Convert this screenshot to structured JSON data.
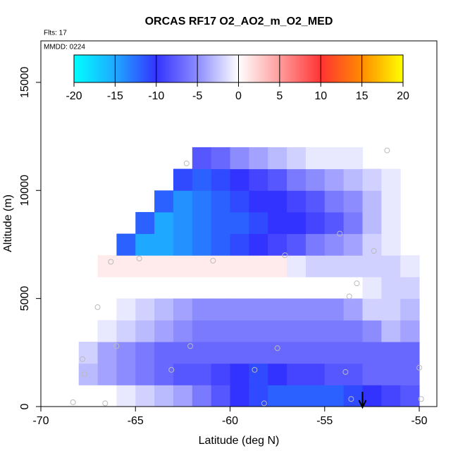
{
  "chart_data": {
    "type": "heatmap",
    "title": "ORCAS RF17 O2_AO2_m_O2_MED",
    "annotations": [
      "Flts: 17",
      "MMDD: 0224"
    ],
    "xlabel": "Latitude (deg N)",
    "ylabel": "Altitude (m)",
    "xlim": [
      -70,
      -49.07
    ],
    "ylim": [
      0,
      16920
    ],
    "xticks": [
      -70,
      -65,
      -60,
      -55,
      -50
    ],
    "yticks": [
      0,
      5000,
      10000,
      15000
    ],
    "colorbar_ticks": [
      -20,
      -15,
      -10,
      -5,
      0,
      5,
      10,
      15,
      20
    ],
    "colorbar_colors": [
      "#00ffff",
      "#1fa8ff",
      "#3333ff",
      "#8c8cff",
      "#ffffff",
      "#ff9c9c",
      "#ff3333",
      "#ff8c00",
      "#ffff00"
    ],
    "x_edges": [
      -68,
      -67,
      -66,
      -65,
      -64,
      -63,
      -62,
      -61,
      -60,
      -59,
      -58,
      -57,
      -56,
      -55,
      -54,
      -53,
      -52,
      -51,
      -50
    ],
    "y_edges": [
      0,
      1000,
      2000,
      3000,
      4000,
      5000,
      6000,
      7000,
      8000,
      9000,
      10000,
      11000,
      12000
    ],
    "z": [
      [
        null,
        null,
        -1,
        -2,
        -3,
        -4,
        -6,
        -8,
        -10,
        -11,
        -12,
        -12,
        -12,
        -12,
        -11,
        -10,
        -9,
        -8
      ],
      [
        -3,
        -4,
        -5,
        -6,
        -7,
        -8,
        -8,
        -9,
        -10,
        -11,
        -10,
        -9,
        -9,
        -8,
        -8,
        -7,
        -7,
        -7
      ],
      [
        -2,
        -4,
        -5,
        -6,
        -7,
        -7,
        -7,
        -7,
        -7,
        -7,
        -7,
        -7,
        -7,
        -7,
        -7,
        -7,
        -7,
        -7
      ],
      [
        null,
        -1,
        -2,
        -3,
        -4,
        -5,
        -6,
        -6,
        -6,
        -6,
        -6,
        -6,
        -6,
        -6,
        -6,
        -5,
        -3,
        -4
      ],
      [
        null,
        null,
        -1,
        -2,
        -3,
        -4,
        -5,
        -5,
        -5,
        -5,
        -5,
        -5,
        -5,
        -5,
        -4,
        -2,
        -2,
        -3
      ],
      [
        null,
        null,
        null,
        null,
        null,
        null,
        null,
        null,
        null,
        null,
        null,
        null,
        null,
        null,
        null,
        -1,
        -2,
        -2
      ],
      [
        null,
        1,
        1,
        1,
        1,
        1,
        1,
        1,
        1,
        1,
        1,
        -1,
        -2,
        -2,
        -2,
        -2,
        -2,
        -1
      ],
      [
        null,
        null,
        -12,
        -15,
        -15,
        -14,
        -13,
        -12,
        -11,
        -10,
        -9,
        -8,
        -6,
        -5,
        -4,
        -2,
        -1,
        null
      ],
      [
        null,
        null,
        null,
        -12,
        -15,
        -14,
        -13,
        -12,
        -12,
        -11,
        -10,
        -10,
        -9,
        -8,
        -6,
        -3,
        -1,
        null
      ],
      [
        null,
        null,
        null,
        null,
        -12,
        -14,
        -13,
        -12,
        -11,
        -10,
        -10,
        -9,
        -8,
        -6,
        -5,
        -3,
        -1,
        null
      ],
      [
        null,
        null,
        null,
        null,
        null,
        -11,
        -12,
        -11,
        -10,
        -9,
        -8,
        -6,
        -5,
        -4,
        -3,
        -2,
        -1,
        null
      ],
      [
        null,
        null,
        null,
        null,
        null,
        null,
        -8,
        -7,
        -5,
        -4,
        -3,
        -2,
        -1,
        -1,
        -1,
        null,
        null,
        null
      ]
    ],
    "points": {
      "x": [
        -68.3,
        -66.6,
        -67.8,
        -67.7,
        -66,
        -67,
        -66.3,
        -64.8,
        -62.3,
        -60.9,
        -63.1,
        -62.1,
        -58.7,
        -57.5,
        -58.2,
        -57.1,
        -54.2,
        -53.7,
        -53.3,
        -52.4,
        -51.7,
        -53.9,
        -53.6,
        -50,
        -49.9
      ],
      "y": [
        200,
        150,
        2200,
        1500,
        2800,
        4600,
        6700,
        6850,
        11250,
        6750,
        1700,
        2800,
        1700,
        2700,
        150,
        7000,
        8000,
        5100,
        5700,
        7200,
        11850,
        1600,
        350,
        1800,
        350
      ]
    }
  }
}
